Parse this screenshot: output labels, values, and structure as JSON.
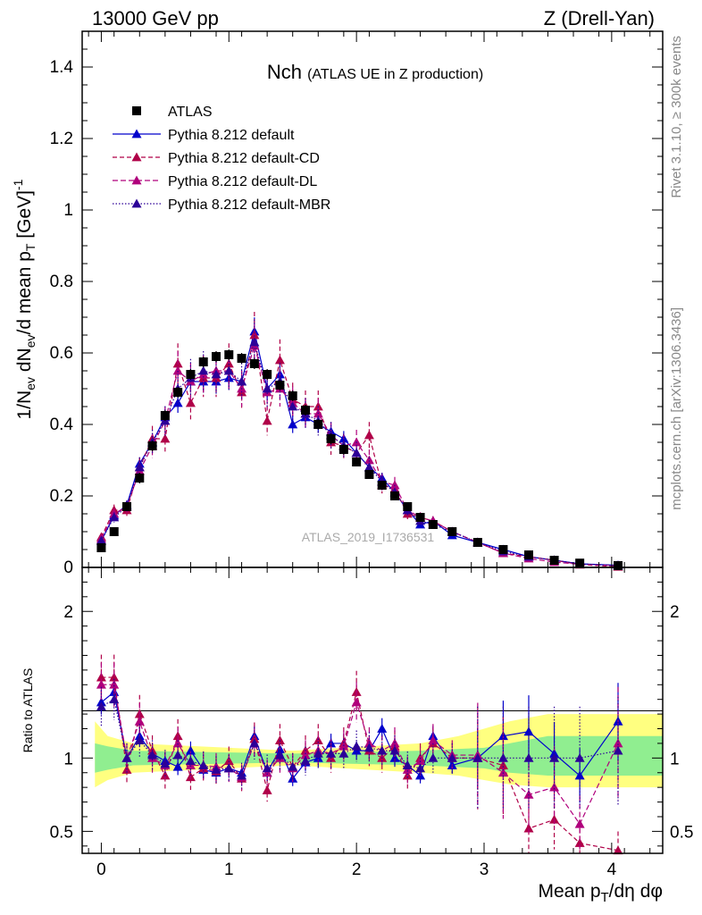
{
  "header": {
    "left": "13000 GeV pp",
    "right": "Z (Drell-Yan)"
  },
  "side_labels": {
    "rivet": "Rivet 3.1.10, ≥ 300k events",
    "mcplots": "mcplots.cern.ch [arXiv:1306.3436]"
  },
  "watermark": "ATLAS_2019_I1736531",
  "colors": {
    "atlas": "#000000",
    "default": "#0000cc",
    "cd": "#b00048",
    "dl": "#b0007c",
    "mbr": "#2c0098",
    "band_outer": "#ffff80",
    "band_inner": "#90ee90"
  },
  "chart_data": {
    "type": "line",
    "title": "Nch",
    "title_suffix": "(ATLAS UE in Z production)",
    "ylabel_main": "1/N_ev dN_ev/d mean p_T [GeV]^-1",
    "ylabel_ratio": "Ratio to ATLAS",
    "xlabel": "Mean p_T/dη dφ",
    "xlim": [
      -0.15,
      4.4
    ],
    "ylim_main": [
      0,
      1.5
    ],
    "ylim_ratio": [
      0.35,
      2.3
    ],
    "xticks": [
      0,
      1,
      2,
      3,
      4
    ],
    "xtick_labels": [
      "0",
      "1",
      "2",
      "3",
      "4"
    ],
    "yticks_main": [
      0,
      0.2,
      0.4,
      0.6,
      0.8,
      1,
      1.2,
      1.4
    ],
    "ytick_labels_main": [
      "0",
      "0.2",
      "0.4",
      "0.6",
      "0.8",
      "1",
      "1.2",
      "1.4"
    ],
    "yticks_ratio": [
      0.5,
      1,
      2
    ],
    "ytick_labels_ratio": [
      "0.5",
      "1",
      "2"
    ],
    "legend": [
      {
        "key": "atlas",
        "label": "ATLAS"
      },
      {
        "key": "default",
        "label": "Pythia 8.212 default"
      },
      {
        "key": "cd",
        "label": "Pythia 8.212 default-CD"
      },
      {
        "key": "dl",
        "label": "Pythia 8.212 default-DL"
      },
      {
        "key": "mbr",
        "label": "Pythia 8.212 default-MBR"
      }
    ],
    "x": [
      0.0,
      0.1,
      0.2,
      0.3,
      0.4,
      0.5,
      0.6,
      0.7,
      0.8,
      0.9,
      1.0,
      1.1,
      1.2,
      1.3,
      1.4,
      1.5,
      1.6,
      1.7,
      1.8,
      1.9,
      2.0,
      2.1,
      2.2,
      2.3,
      2.4,
      2.5,
      2.6,
      2.75,
      2.95,
      3.15,
      3.35,
      3.55,
      3.75,
      4.05
    ],
    "atlas": [
      0.055,
      0.1,
      0.17,
      0.25,
      0.34,
      0.425,
      0.49,
      0.54,
      0.575,
      0.59,
      0.595,
      0.585,
      0.57,
      0.54,
      0.51,
      0.48,
      0.44,
      0.4,
      0.36,
      0.33,
      0.295,
      0.26,
      0.23,
      0.2,
      0.17,
      0.14,
      0.12,
      0.1,
      0.07,
      0.05,
      0.035,
      0.02,
      0.012,
      0.005
    ],
    "atlas_err": [
      0.01,
      0.01,
      0.012,
      0.015,
      0.015,
      0.015,
      0.015,
      0.015,
      0.015,
      0.015,
      0.015,
      0.015,
      0.015,
      0.015,
      0.015,
      0.015,
      0.015,
      0.015,
      0.015,
      0.015,
      0.012,
      0.012,
      0.01,
      0.01,
      0.01,
      0.008,
      0.008,
      0.006,
      0.005,
      0.004,
      0.003,
      0.002,
      0.002,
      0.001
    ],
    "series": [
      {
        "name": "Pythia 8.212 default",
        "key": "default",
        "dash": "",
        "values": [
          0.075,
          0.145,
          0.175,
          0.29,
          0.35,
          0.42,
          0.46,
          0.52,
          0.52,
          0.52,
          0.53,
          0.52,
          0.66,
          0.5,
          0.54,
          0.4,
          0.42,
          0.4,
          0.38,
          0.36,
          0.32,
          0.28,
          0.25,
          0.21,
          0.16,
          0.12,
          0.13,
          0.09,
          0.07,
          0.05,
          0.03,
          0.02,
          0.01,
          0.006
        ],
        "ratio": [
          1.38,
          1.45,
          1.0,
          1.15,
          1.03,
          0.98,
          0.94,
          1.05,
          0.92,
          0.9,
          0.93,
          0.9,
          1.15,
          0.9,
          1.06,
          0.86,
          0.97,
          1.0,
          1.1,
          1.1,
          1.05,
          1.05,
          1.2,
          1.0,
          0.95,
          0.88,
          1.15,
          0.95,
          1.0,
          1.15,
          1.18,
          1.03,
          0.88,
          1.25
        ]
      },
      {
        "name": "Pythia 8.212 default-CD",
        "key": "cd",
        "dash": "5,3",
        "values": [
          0.085,
          0.16,
          0.16,
          0.28,
          0.36,
          0.36,
          0.57,
          0.46,
          0.53,
          0.53,
          0.57,
          0.49,
          0.65,
          0.41,
          0.58,
          0.47,
          0.45,
          0.45,
          0.35,
          0.34,
          0.32,
          0.37,
          0.23,
          0.22,
          0.15,
          0.14,
          0.13,
          0.1,
          0.07,
          0.04,
          0.03,
          0.02,
          0.008,
          0.002
        ],
        "ratio": [
          1.55,
          1.55,
          0.92,
          1.3,
          1.05,
          0.88,
          1.15,
          0.87,
          0.93,
          0.91,
          0.98,
          0.86,
          1.13,
          0.78,
          1.12,
          0.94,
          1.05,
          1.12,
          1.0,
          1.1,
          1.45,
          1.05,
          1.0,
          1.08,
          0.88,
          1.0,
          1.1,
          1.0,
          1.0,
          0.95,
          0.52,
          0.58,
          0.42,
          0.37
        ]
      },
      {
        "name": "Pythia 8.212 default-DL",
        "key": "dl",
        "dash": "6,3",
        "values": [
          0.08,
          0.15,
          0.17,
          0.27,
          0.34,
          0.41,
          0.55,
          0.52,
          0.54,
          0.55,
          0.55,
          0.5,
          0.62,
          0.49,
          0.5,
          0.46,
          0.43,
          0.43,
          0.37,
          0.34,
          0.35,
          0.3,
          0.24,
          0.23,
          0.16,
          0.14,
          0.13,
          0.1,
          0.07,
          0.04,
          0.025,
          0.015,
          0.009,
          0.005
        ],
        "ratio": [
          1.5,
          1.5,
          1.0,
          1.25,
          1.0,
          0.95,
          1.1,
          0.95,
          0.95,
          0.94,
          0.93,
          0.87,
          1.1,
          0.9,
          1.0,
          0.93,
          1.02,
          1.05,
          1.03,
          1.08,
          1.38,
          1.1,
          1.05,
          1.1,
          0.92,
          0.98,
          1.12,
          1.02,
          1.02,
          0.9,
          0.75,
          0.8,
          0.55,
          1.1
        ]
      },
      {
        "name": "Pythia 8.212 default-MBR",
        "key": "mbr",
        "dash": "1.5,2",
        "values": [
          0.075,
          0.14,
          0.17,
          0.28,
          0.35,
          0.41,
          0.5,
          0.53,
          0.55,
          0.54,
          0.55,
          0.52,
          0.63,
          0.5,
          0.52,
          0.45,
          0.43,
          0.41,
          0.37,
          0.34,
          0.32,
          0.28,
          0.24,
          0.21,
          0.16,
          0.13,
          0.12,
          0.1,
          0.07,
          0.045,
          0.03,
          0.02,
          0.01,
          0.005
        ],
        "ratio": [
          1.35,
          1.4,
          1.0,
          1.12,
          1.02,
          0.96,
          1.02,
          0.98,
          0.95,
          0.92,
          0.93,
          0.88,
          1.1,
          0.93,
          1.02,
          0.94,
          0.98,
          1.03,
          1.03,
          1.03,
          1.08,
          1.07,
          1.05,
          1.05,
          0.95,
          0.93,
          1.0,
          1.0,
          1.0,
          1.0,
          1.0,
          1.0,
          1.0,
          1.05
        ]
      }
    ],
    "band_inner": [
      [
        -0.05,
        0.9,
        1.1
      ],
      [
        0.05,
        0.92,
        1.08
      ],
      [
        0.25,
        0.95,
        1.05
      ],
      [
        1.5,
        0.97,
        1.03
      ],
      [
        2.5,
        0.95,
        1.05
      ],
      [
        3.0,
        0.93,
        1.07
      ],
      [
        3.2,
        0.9,
        1.1
      ],
      [
        3.5,
        0.88,
        1.15
      ],
      [
        4.4,
        0.88,
        1.15
      ]
    ],
    "band_outer": [
      [
        -0.05,
        0.8,
        1.25
      ],
      [
        0.05,
        0.85,
        1.15
      ],
      [
        0.25,
        0.9,
        1.1
      ],
      [
        1.5,
        0.95,
        1.05
      ],
      [
        2.5,
        0.9,
        1.1
      ],
      [
        2.8,
        0.88,
        1.15
      ],
      [
        3.0,
        0.85,
        1.2
      ],
      [
        3.2,
        0.82,
        1.25
      ],
      [
        3.5,
        0.8,
        1.3
      ],
      [
        4.4,
        0.8,
        1.3
      ]
    ]
  }
}
